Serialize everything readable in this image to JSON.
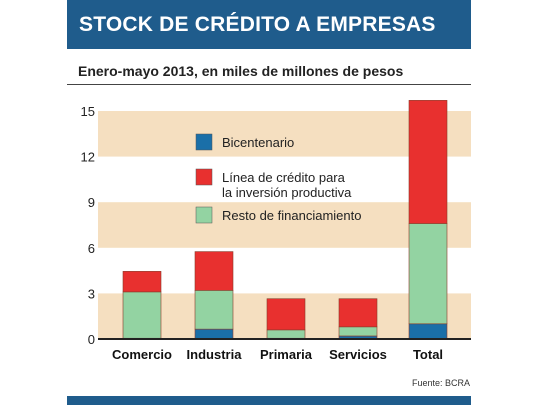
{
  "header": {
    "title": "STOCK DE CRÉDITO A EMPRESAS"
  },
  "subtitle": "Enero-mayo 2013, en miles de millones de pesos",
  "source": "Fuente: BCRA",
  "colors": {
    "header_bg": "#1f5c8c",
    "band": "#f5dfc0",
    "bicentenario": "#1a6fa8",
    "linea_credito": "#e8302f",
    "resto": "#93d3a2"
  },
  "chart_data": {
    "type": "bar",
    "stacked": true,
    "categories": [
      "Comercio",
      "Industria",
      "Primaria",
      "Servicios",
      "Total"
    ],
    "series": [
      {
        "name": "Bicentenario",
        "color": "#1a6fa8",
        "values": [
          0.05,
          0.65,
          0.05,
          0.2,
          1.0
        ]
      },
      {
        "name": "Resto de financiamiento",
        "color": "#93d3a2",
        "values": [
          3.05,
          2.55,
          0.55,
          0.6,
          6.6
        ]
      },
      {
        "name": "Línea de crédito para la inversión productiva",
        "color": "#e8302f",
        "values": [
          1.35,
          2.55,
          2.05,
          1.85,
          8.1
        ]
      }
    ],
    "legend": [
      {
        "lines": [
          "Bicentenario"
        ],
        "color": "#1a6fa8"
      },
      {
        "lines": [
          "Línea de crédito para",
          "la inversión productiva"
        ],
        "color": "#e8302f"
      },
      {
        "lines": [
          "Resto de financiamiento"
        ],
        "color": "#93d3a2"
      }
    ],
    "yticks": [
      0,
      3,
      6,
      9,
      12,
      15
    ],
    "ylim": [
      0,
      15.8
    ],
    "banded_background": true,
    "legend_position": "top-left"
  }
}
